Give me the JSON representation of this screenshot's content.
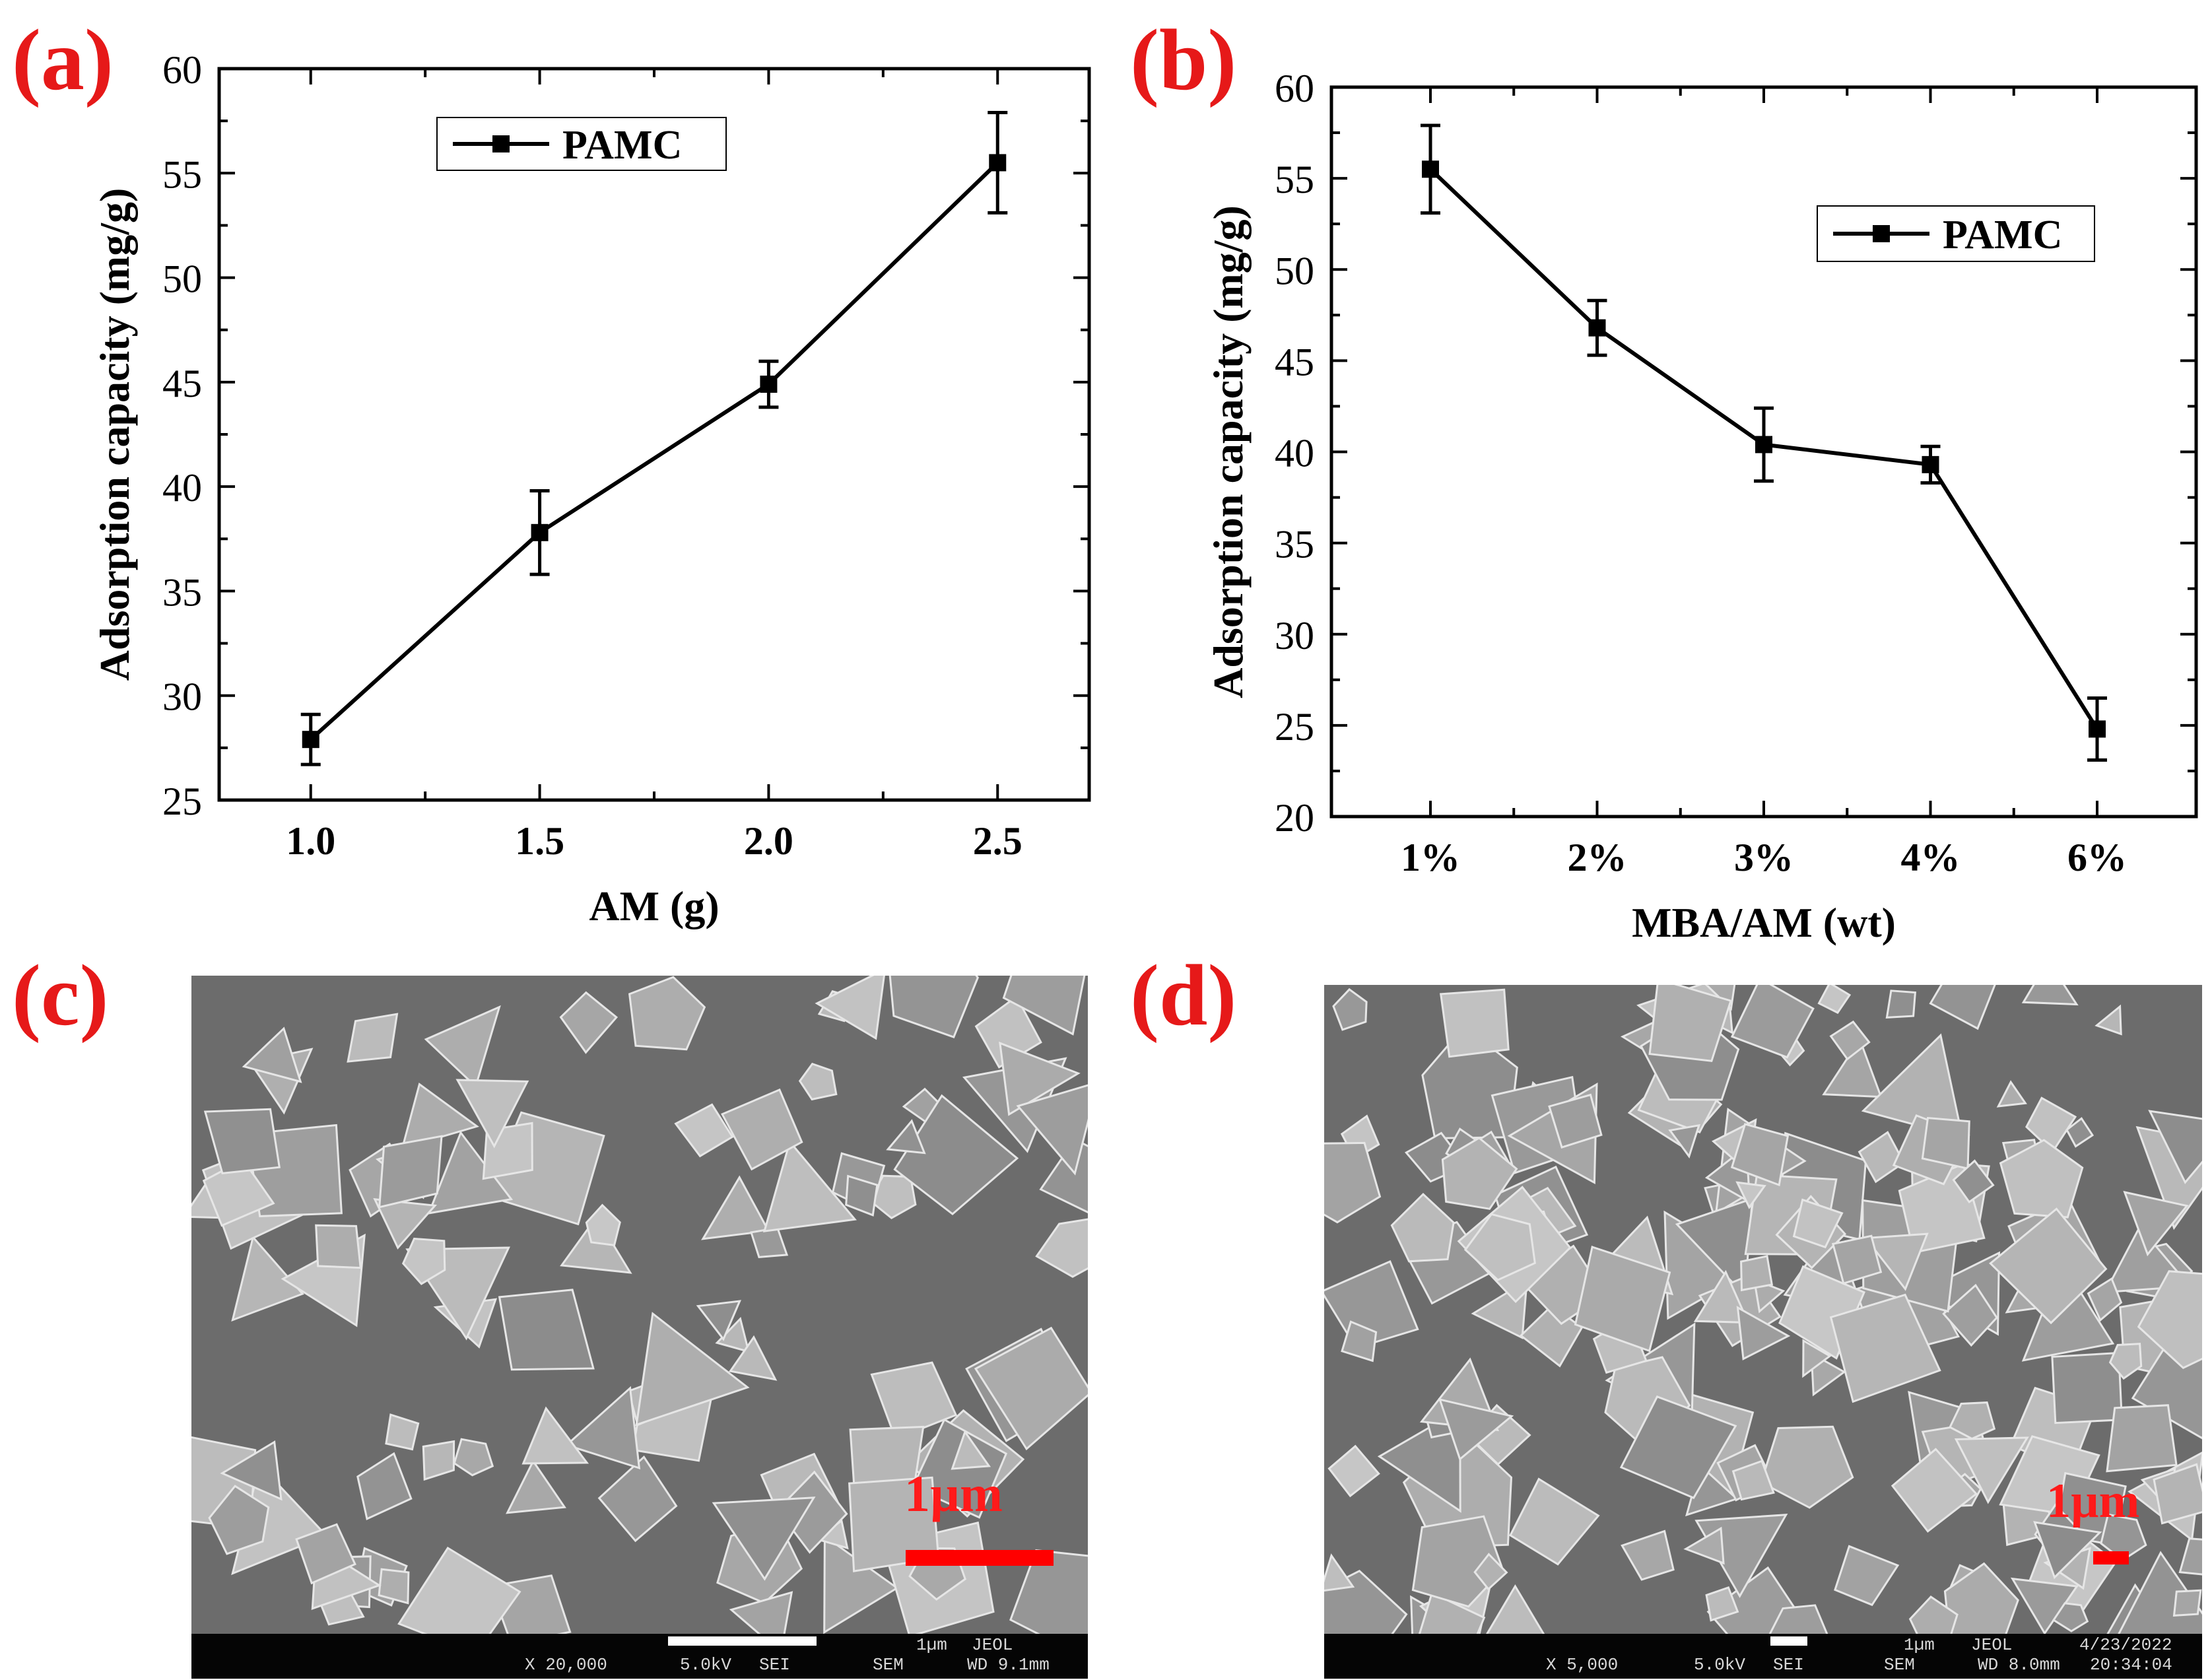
{
  "chart_data": [
    {
      "panel": "(a)",
      "type": "line",
      "x": [
        1.0,
        1.5,
        2.0,
        2.5
      ],
      "series": [
        {
          "name": "PAMC",
          "values": [
            27.9,
            37.8,
            44.9,
            55.5
          ],
          "errors": [
            1.2,
            2.0,
            1.1,
            2.4
          ]
        }
      ],
      "xlabel": "AM (g)",
      "ylabel": "Adsorption capacity (mg/g)",
      "xlim": [
        0.8,
        2.7
      ],
      "ylim": [
        25,
        60
      ],
      "xticks": [
        "1.0",
        "1.5",
        "2.0",
        "2.5"
      ],
      "yticks": [
        "25",
        "30",
        "35",
        "40",
        "45",
        "50",
        "55",
        "60"
      ],
      "legend": "top-left",
      "grid": false
    },
    {
      "panel": "(b)",
      "type": "line",
      "categories": [
        "1%",
        "2%",
        "3%",
        "4%",
        "6%"
      ],
      "series": [
        {
          "name": "PAMC",
          "values": [
            55.5,
            46.8,
            40.4,
            39.3,
            24.8
          ],
          "errors": [
            2.4,
            1.5,
            2.0,
            1.0,
            1.7
          ]
        }
      ],
      "xlabel": "MBA/AM (wt)",
      "ylabel": "Adsorption capacity (mg/g)",
      "ylim": [
        20,
        60
      ],
      "yticks": [
        "20",
        "25",
        "30",
        "35",
        "40",
        "45",
        "50",
        "55",
        "60"
      ],
      "legend": "top-right",
      "grid": false
    }
  ],
  "sem": [
    {
      "panel": "(c)",
      "scale_text": "1µm",
      "info": {
        "mag": "X 20,000",
        "kv": "5.0kV",
        "det": "SEI",
        "scale": "1µm",
        "brand": "JEOL",
        "mode": "SEM",
        "wd": "WD 9.1mm"
      }
    },
    {
      "panel": "(d)",
      "scale_text": "1µm",
      "info": {
        "mag": "X 5,000",
        "kv": "5.0kV",
        "det": "SEI",
        "scale": "1µm",
        "brand": "JEOL",
        "date": "4/23/2022",
        "mode": "SEM",
        "wd": "WD 8.0mm",
        "time": "20:34:04"
      }
    }
  ]
}
